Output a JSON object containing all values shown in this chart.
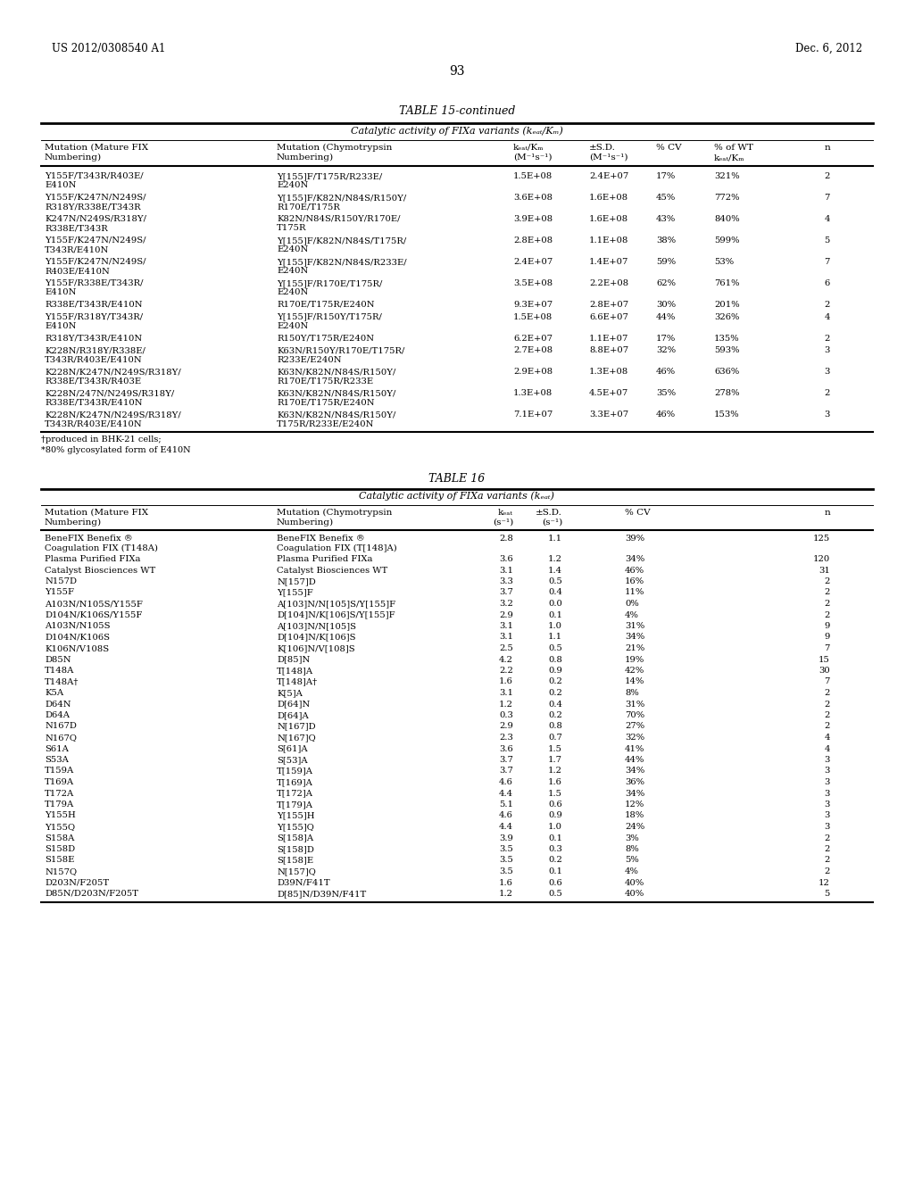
{
  "page_header_left": "US 2012/0308540 A1",
  "page_header_right": "Dec. 6, 2012",
  "page_number": "93",
  "table15_title": "TABLE 15-continued",
  "table15_subtitle": "Catalytic activity of FIXa variants (kₑₐₜ/Kₘ)",
  "table16_title": "TABLE 16",
  "table16_subtitle": "Catalytic activity of FIXa variants (kₑₐₜ)",
  "table15_rows": [
    [
      "Y155F/T343R/R403E/\nE410N",
      "Y[155]F/T175R/R233E/\nE240N",
      "1.5E+08",
      "2.4E+07",
      "17%",
      "321%",
      "2"
    ],
    [
      "Y155F/K247N/N249S/\nR318Y/R338E/T343R",
      "Y[155]F/K82N/N84S/R150Y/\nR170E/T175R",
      "3.6E+08",
      "1.6E+08",
      "45%",
      "772%",
      "7"
    ],
    [
      "K247N/N249S/R318Y/\nR338E/T343R",
      "K82N/N84S/R150Y/R170E/\nT175R",
      "3.9E+08",
      "1.6E+08",
      "43%",
      "840%",
      "4"
    ],
    [
      "Y155F/K247N/N249S/\nT343R/E410N",
      "Y[155]F/K82N/N84S/T175R/\nE240N",
      "2.8E+08",
      "1.1E+08",
      "38%",
      "599%",
      "5"
    ],
    [
      "Y155F/K247N/N249S/\nR403E/E410N",
      "Y[155]F/K82N/N84S/R233E/\nE240N",
      "2.4E+07",
      "1.4E+07",
      "59%",
      "53%",
      "7"
    ],
    [
      "Y155F/R338E/T343R/\nE410N",
      "Y[155]F/R170E/T175R/\nE240N",
      "3.5E+08",
      "2.2E+08",
      "62%",
      "761%",
      "6"
    ],
    [
      "R338E/T343R/E410N",
      "R170E/T175R/E240N",
      "9.3E+07",
      "2.8E+07",
      "30%",
      "201%",
      "2"
    ],
    [
      "Y155F/R318Y/T343R/\nE410N",
      "Y[155]F/R150Y/T175R/\nE240N",
      "1.5E+08",
      "6.6E+07",
      "44%",
      "326%",
      "4"
    ],
    [
      "R318Y/T343R/E410N",
      "R150Y/T175R/E240N",
      "6.2E+07",
      "1.1E+07",
      "17%",
      "135%",
      "2"
    ],
    [
      "K228N/R318Y/R338E/\nT343R/R403E/E410N",
      "K63N/R150Y/R170E/T175R/\nR233E/E240N",
      "2.7E+08",
      "8.8E+07",
      "32%",
      "593%",
      "3"
    ],
    [
      "K228N/K247N/N249S/R318Y/\nR338E/T343R/R403E",
      "K63N/K82N/N84S/R150Y/\nR170E/T175R/R233E",
      "2.9E+08",
      "1.3E+08",
      "46%",
      "636%",
      "3"
    ],
    [
      "K228N/247N/N249S/R318Y/\nR338E/T343R/E410N",
      "K63N/K82N/N84S/R150Y/\nR170E/T175R/E240N",
      "1.3E+08",
      "4.5E+07",
      "35%",
      "278%",
      "2"
    ],
    [
      "K228N/K247N/N249S/R318Y/\nT343R/R403E/E410N",
      "K63N/K82N/N84S/R150Y/\nT175R/R233E/E240N",
      "7.1E+07",
      "3.3E+07",
      "46%",
      "153%",
      "3"
    ]
  ],
  "table15_footnotes": [
    "†produced in BHK-21 cells;",
    "*80% glycosylated form of E410N"
  ],
  "table16_rows": [
    [
      "BeneFIX Benefix ®\nCoagulation FIX (T148A)",
      "BeneFIX Benefix ®\nCoagulation FIX (T[148]A)",
      "2.8",
      "1.1",
      "39%",
      "125"
    ],
    [
      "Plasma Purified FIXa",
      "Plasma Purified FIXa",
      "3.6",
      "1.2",
      "34%",
      "120"
    ],
    [
      "Catalyst Biosciences WT",
      "Catalyst Biosciences WT",
      "3.1",
      "1.4",
      "46%",
      "31"
    ],
    [
      "N157D",
      "N[157]D",
      "3.3",
      "0.5",
      "16%",
      "2"
    ],
    [
      "Y155F",
      "Y[155]F",
      "3.7",
      "0.4",
      "11%",
      "2"
    ],
    [
      "A103N/N105S/Y155F",
      "A[103]N/N[105]S/Y[155]F",
      "3.2",
      "0.0",
      "0%",
      "2"
    ],
    [
      "D104N/K106S/Y155F",
      "D[104]N/K[106]S/Y[155]F",
      "2.9",
      "0.1",
      "4%",
      "2"
    ],
    [
      "A103N/N105S",
      "A[103]N/N[105]S",
      "3.1",
      "1.0",
      "31%",
      "9"
    ],
    [
      "D104N/K106S",
      "D[104]N/K[106]S",
      "3.1",
      "1.1",
      "34%",
      "9"
    ],
    [
      "K106N/V108S",
      "K[106]N/V[108]S",
      "2.5",
      "0.5",
      "21%",
      "7"
    ],
    [
      "D85N",
      "D[85]N",
      "4.2",
      "0.8",
      "19%",
      "15"
    ],
    [
      "T148A",
      "T[148]A",
      "2.2",
      "0.9",
      "42%",
      "30"
    ],
    [
      "T148A†",
      "T[148]A†",
      "1.6",
      "0.2",
      "14%",
      "7"
    ],
    [
      "K5A",
      "K[5]A",
      "3.1",
      "0.2",
      "8%",
      "2"
    ],
    [
      "D64N",
      "D[64]N",
      "1.2",
      "0.4",
      "31%",
      "2"
    ],
    [
      "D64A",
      "D[64]A",
      "0.3",
      "0.2",
      "70%",
      "2"
    ],
    [
      "N167D",
      "N[167]D",
      "2.9",
      "0.8",
      "27%",
      "2"
    ],
    [
      "N167Q",
      "N[167]Q",
      "2.3",
      "0.7",
      "32%",
      "4"
    ],
    [
      "S61A",
      "S[61]A",
      "3.6",
      "1.5",
      "41%",
      "4"
    ],
    [
      "S53A",
      "S[53]A",
      "3.7",
      "1.7",
      "44%",
      "3"
    ],
    [
      "T159A",
      "T[159]A",
      "3.7",
      "1.2",
      "34%",
      "3"
    ],
    [
      "T169A",
      "T[169]A",
      "4.6",
      "1.6",
      "36%",
      "3"
    ],
    [
      "T172A",
      "T[172]A",
      "4.4",
      "1.5",
      "34%",
      "3"
    ],
    [
      "T179A",
      "T[179]A",
      "5.1",
      "0.6",
      "12%",
      "3"
    ],
    [
      "Y155H",
      "Y[155]H",
      "4.6",
      "0.9",
      "18%",
      "3"
    ],
    [
      "Y155Q",
      "Y[155]Q",
      "4.4",
      "1.0",
      "24%",
      "3"
    ],
    [
      "S158A",
      "S[158]A",
      "3.9",
      "0.1",
      "3%",
      "2"
    ],
    [
      "S158D",
      "S[158]D",
      "3.5",
      "0.3",
      "8%",
      "2"
    ],
    [
      "S158E",
      "S[158]E",
      "3.5",
      "0.2",
      "5%",
      "2"
    ],
    [
      "N157Q",
      "N[157]Q",
      "3.5",
      "0.1",
      "4%",
      "2"
    ],
    [
      "D203N/F205T",
      "D39N/F41T",
      "1.6",
      "0.6",
      "40%",
      "12"
    ],
    [
      "D85N/D203N/F205T",
      "D[85]N/D39N/F41T",
      "1.2",
      "0.5",
      "40%",
      "5"
    ]
  ],
  "bg_color": "#ffffff",
  "text_color": "#000000"
}
